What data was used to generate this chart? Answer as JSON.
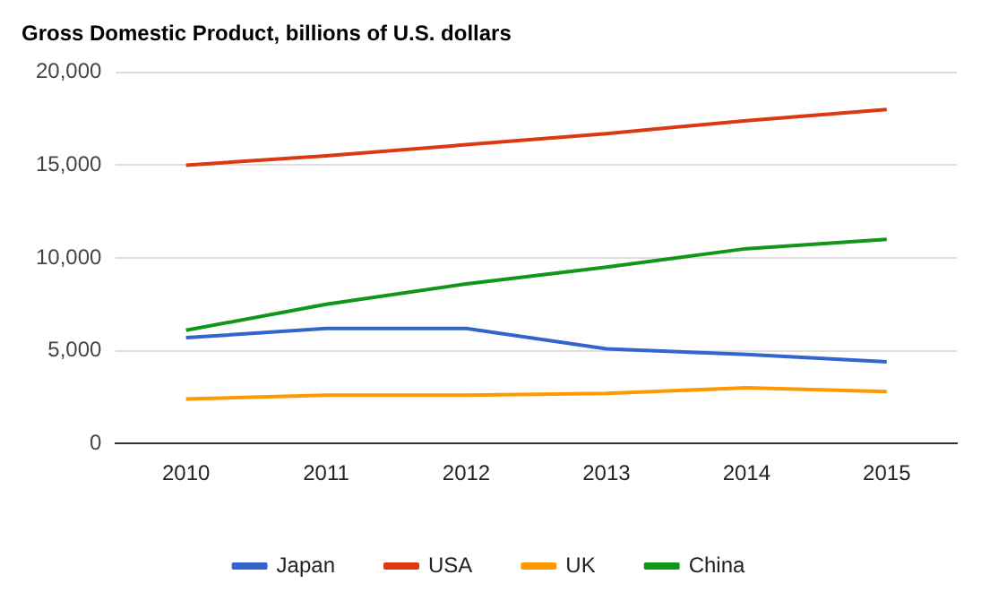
{
  "chart_data": {
    "type": "line",
    "title": "Gross Domestic Product, billions of U.S. dollars",
    "categories": [
      "2010",
      "2011",
      "2012",
      "2013",
      "2014",
      "2015"
    ],
    "series": [
      {
        "name": "Japan",
        "color": "#3366cc",
        "values": [
          5700,
          6200,
          6200,
          5100,
          4800,
          4400
        ]
      },
      {
        "name": "USA",
        "color": "#dc3912",
        "values": [
          15000,
          15500,
          16100,
          16700,
          17400,
          18000
        ]
      },
      {
        "name": "UK",
        "color": "#ff9900",
        "values": [
          2400,
          2600,
          2600,
          2700,
          3000,
          2800
        ]
      },
      {
        "name": "China",
        "color": "#109618",
        "values": [
          6100,
          7500,
          8600,
          9500,
          10500,
          11000
        ]
      }
    ],
    "ylim": [
      0,
      20000
    ],
    "yticks": [
      {
        "value": 0,
        "label": "0"
      },
      {
        "value": 5000,
        "label": "5,000"
      },
      {
        "value": 10000,
        "label": "10,000"
      },
      {
        "value": 15000,
        "label": "15,000"
      },
      {
        "value": 20000,
        "label": "20,000"
      }
    ],
    "grid": "y",
    "legend": "bottom",
    "marker": "none",
    "line_style": "solid"
  }
}
